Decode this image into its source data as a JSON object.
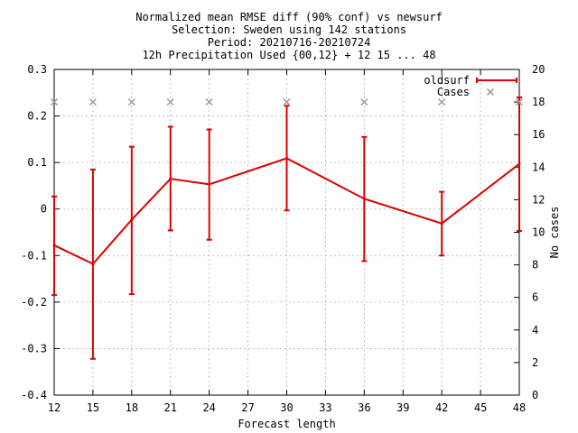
{
  "chart_data": {
    "type": "line",
    "title_lines": [
      "Normalized mean RMSE diff (90% conf) vs newsurf",
      "Selection: Sweden using   142 stations",
      "Period: 20210716-20210724",
      "12h Precipitation   Used {00,12} + 12 15 ... 48"
    ],
    "xlabel": "Forecast length",
    "ylabel": "",
    "y2label": "No cases",
    "xlim": [
      12,
      48
    ],
    "ylim": [
      -0.4,
      0.3
    ],
    "y2lim": [
      0,
      20
    ],
    "xticks": [
      12,
      15,
      18,
      21,
      24,
      27,
      30,
      33,
      36,
      39,
      42,
      45,
      48
    ],
    "yticks": [
      -0.4,
      -0.3,
      -0.2,
      -0.1,
      0,
      0.1,
      0.2,
      0.3
    ],
    "ytick_labels": [
      "-0.4",
      "-0.3",
      "-0.2",
      "-0.1",
      "0",
      "0.1",
      "0.2",
      "0.3"
    ],
    "y2ticks": [
      0,
      2,
      4,
      6,
      8,
      10,
      12,
      14,
      16,
      18,
      20
    ],
    "grid": true,
    "legend_position": "top-right",
    "series": [
      {
        "name": "oldsurf",
        "color": "#dd0000",
        "axis": "y1",
        "x": [
          12,
          15,
          18,
          21,
          24,
          30,
          36,
          42,
          48
        ],
        "y": [
          -0.078,
          -0.118,
          -0.023,
          0.065,
          0.053,
          0.109,
          0.022,
          -0.031,
          0.097
        ],
        "yerr_low": [
          -0.185,
          -0.322,
          -0.183,
          -0.046,
          -0.066,
          -0.003,
          -0.112,
          -0.1,
          -0.047
        ],
        "yerr_high": [
          0.027,
          0.085,
          0.134,
          0.177,
          0.171,
          0.222,
          0.155,
          0.037,
          0.24
        ]
      },
      {
        "name": "Cases",
        "color": "#a0a0a0",
        "axis": "y2",
        "marker": "x",
        "x": [
          12,
          15,
          18,
          21,
          24,
          30,
          36,
          42,
          48
        ],
        "y": [
          18,
          18,
          18,
          18,
          18,
          18,
          18,
          18,
          18
        ]
      }
    ]
  }
}
